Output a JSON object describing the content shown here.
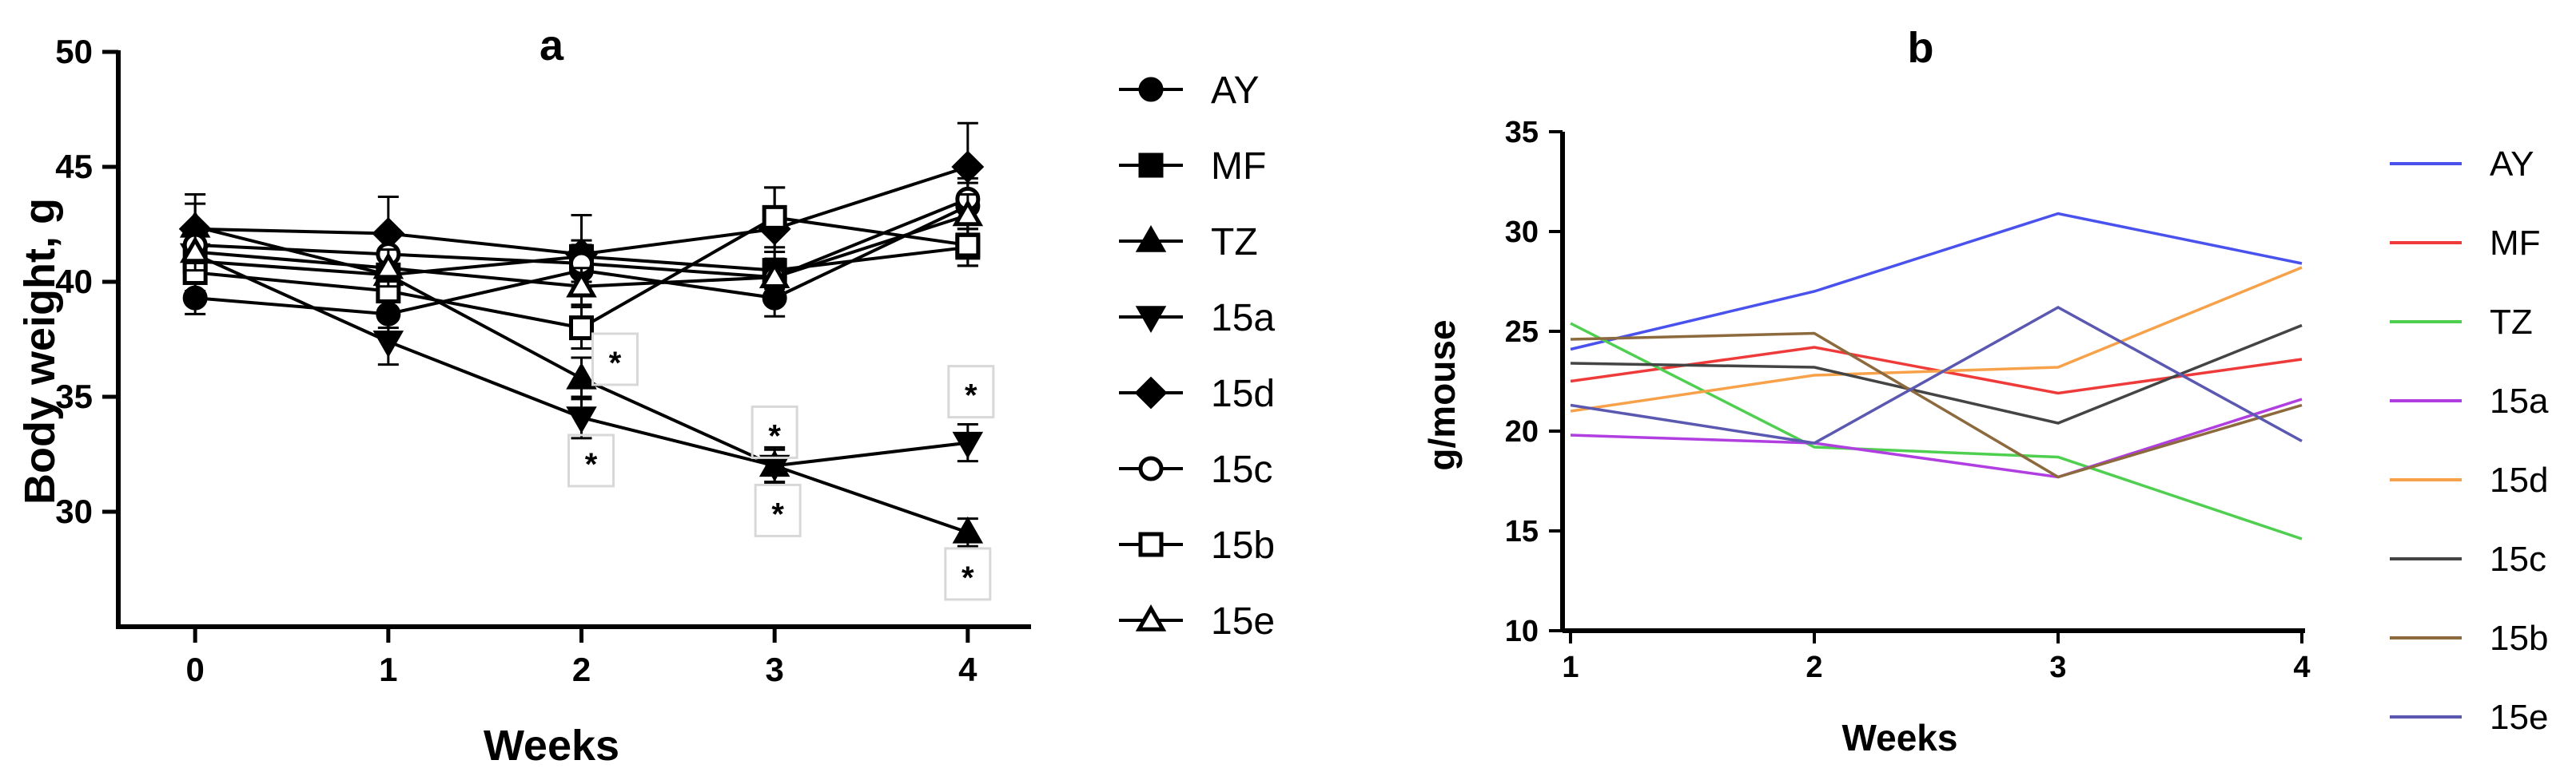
{
  "chart_data": [
    {
      "panel": "a",
      "type": "line",
      "title": "a",
      "xlabel": "Weeks",
      "ylabel": "Body weight, g",
      "x": [
        0,
        1,
        2,
        3,
        4
      ],
      "x_tick_labels": [
        "0",
        "1",
        "2",
        "3",
        "4"
      ],
      "y_ticks": [
        30,
        35,
        40,
        45,
        50
      ],
      "y_tick_labels": [
        "30",
        "35",
        "40",
        "45",
        "50"
      ],
      "ylim": [
        25,
        50
      ],
      "xlim": [
        -0.1,
        4.1
      ],
      "legend_position": "right",
      "series": [
        {
          "name": "AY",
          "marker": "circle-filled",
          "values": [
            39.3,
            38.6,
            40.5,
            39.3,
            43.3
          ],
          "errors": [
            0.7,
            0.6,
            0.8,
            0.8,
            1.0
          ]
        },
        {
          "name": "MF",
          "marker": "square-filled",
          "values": [
            40.9,
            40.3,
            41.1,
            40.5,
            41.5
          ],
          "errors": [
            0.8,
            0.7,
            0.7,
            0.8,
            0.8
          ]
        },
        {
          "name": "TZ",
          "marker": "triangle-up-filled",
          "values": [
            42.4,
            40.3,
            35.8,
            32.0,
            29.1
          ],
          "errors": [
            1.0,
            0.8,
            0.9,
            0.8,
            0.6
          ]
        },
        {
          "name": "15a",
          "marker": "triangle-down-filled",
          "values": [
            41.2,
            37.4,
            34.1,
            32.0,
            33.0
          ],
          "errors": [
            0.9,
            1.0,
            0.9,
            0.7,
            0.8
          ]
        },
        {
          "name": "15d",
          "marker": "diamond-filled",
          "values": [
            42.3,
            42.1,
            41.2,
            42.3,
            45.0
          ],
          "errors": [
            1.5,
            1.6,
            1.7,
            1.8,
            1.9
          ]
        },
        {
          "name": "15c",
          "marker": "circle-open",
          "values": [
            41.6,
            41.2,
            40.8,
            40.2,
            43.6
          ],
          "errors": [
            0.8,
            0.8,
            0.8,
            0.8,
            0.9
          ]
        },
        {
          "name": "15b",
          "marker": "square-open",
          "values": [
            40.4,
            39.6,
            38.0,
            42.8,
            41.6
          ],
          "errors": [
            0.8,
            0.8,
            0.9,
            1.3,
            0.9
          ]
        },
        {
          "name": "15e",
          "marker": "triangle-up-open",
          "values": [
            41.3,
            40.6,
            39.8,
            40.2,
            42.9
          ],
          "errors": [
            0.8,
            0.8,
            0.8,
            0.8,
            0.9
          ]
        }
      ],
      "annotations": [
        {
          "text": "*",
          "x": 2,
          "near": 35.8
        },
        {
          "text": "*",
          "x": 2,
          "near": 34.1
        },
        {
          "text": "*",
          "x": 3,
          "near": 32.0
        },
        {
          "text": "*",
          "x": 3,
          "near": 32.0
        },
        {
          "text": "*",
          "x": 4,
          "near": 33.0
        },
        {
          "text": "*",
          "x": 4,
          "near": 29.1
        }
      ]
    },
    {
      "panel": "b",
      "type": "line",
      "title": "b",
      "xlabel": "Weeks",
      "ylabel": "g/mouse",
      "x": [
        1,
        2,
        3,
        4
      ],
      "x_tick_labels": [
        "1",
        "2",
        "3",
        "4"
      ],
      "y_ticks": [
        10,
        15,
        20,
        25,
        30,
        35
      ],
      "y_tick_labels": [
        "10",
        "15",
        "20",
        "25",
        "30",
        "35"
      ],
      "ylim": [
        10,
        35
      ],
      "xlim": [
        1,
        4
      ],
      "legend_position": "right",
      "series": [
        {
          "name": "AY",
          "color": "#4a52ee",
          "values": [
            24.1,
            27.0,
            30.9,
            28.4
          ]
        },
        {
          "name": "MF",
          "color": "#ef3a3a",
          "values": [
            22.5,
            24.2,
            21.9,
            23.6
          ]
        },
        {
          "name": "TZ",
          "color": "#4fcf4f",
          "values": [
            25.4,
            19.2,
            18.7,
            14.6
          ]
        },
        {
          "name": "15a",
          "color": "#b03ee0",
          "values": [
            19.8,
            19.4,
            17.7,
            21.6
          ]
        },
        {
          "name": "15d",
          "color": "#f7a24a",
          "values": [
            21.0,
            22.8,
            23.2,
            28.2
          ]
        },
        {
          "name": "15c",
          "color": "#444444",
          "values": [
            23.4,
            23.2,
            20.4,
            25.3
          ]
        },
        {
          "name": "15b",
          "color": "#8d6a3e",
          "values": [
            24.6,
            24.9,
            17.7,
            21.3
          ]
        },
        {
          "name": "15e",
          "color": "#5a58b0",
          "values": [
            21.3,
            19.4,
            26.2,
            19.5
          ]
        }
      ]
    }
  ]
}
